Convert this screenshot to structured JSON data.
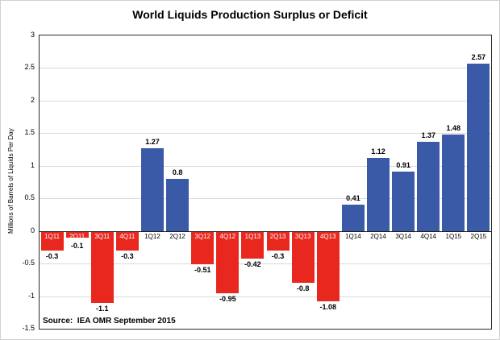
{
  "chart_data": {
    "type": "bar",
    "title": "World Liquids Production Surplus or Deficit",
    "xlabel": "",
    "ylabel": "Millions of Barrels of Liquids Per Day",
    "ylim": [
      -1.5,
      3
    ],
    "ytick_step": 0.5,
    "ytick_labels": [
      "3",
      "2.5",
      "2",
      "1.5",
      "1",
      "0.5",
      "0",
      "-0.5",
      "-1",
      "-1.5"
    ],
    "grid": true,
    "legend": "none",
    "categories": [
      "1Q11",
      "2Q11",
      "3Q11",
      "4Q11",
      "1Q12",
      "2Q12",
      "3Q12",
      "4Q12",
      "1Q13",
      "2Q13",
      "3Q13",
      "4Q13",
      "1Q14",
      "2Q14",
      "3Q14",
      "4Q14",
      "1Q15",
      "2Q15"
    ],
    "values": [
      -0.3,
      -0.1,
      -1.1,
      -0.3,
      1.27,
      0.8,
      -0.51,
      -0.95,
      -0.42,
      -0.3,
      -0.8,
      -1.08,
      0.41,
      1.12,
      0.91,
      1.37,
      1.48,
      2.57
    ],
    "labels": [
      "-0.3",
      "-0.1",
      "-1.1",
      "-0.3",
      "1.27",
      "0.8",
      "-0.51",
      "-0.95",
      "-0.42",
      "-0.3",
      "-0.8",
      "-1.08",
      "0.41",
      "1.12",
      "0.91",
      "1.37",
      "1.48",
      "2.57"
    ],
    "colors": {
      "positive": "#3a59a7",
      "negative": "#e8281e"
    },
    "source_note": "Source:  IEA OMR September 2015"
  }
}
